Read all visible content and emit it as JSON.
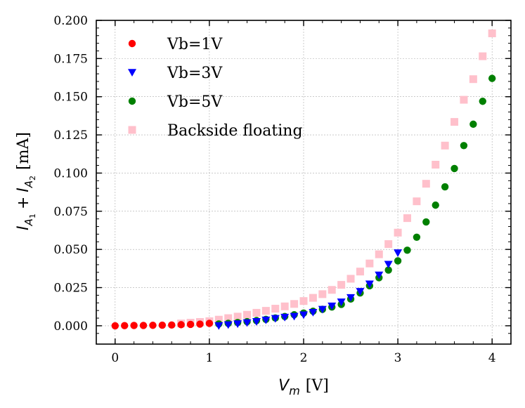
{
  "chart_data": {
    "type": "scatter",
    "title": "",
    "xlabel": {
      "var": "V",
      "sub": "m",
      "unit": "[V]"
    },
    "ylabel": {
      "var1": "I",
      "sub1": "A",
      "subsub1": "1",
      "plus": "+",
      "var2": "I",
      "sub2": "A",
      "subsub2": "2",
      "unit": "[mA]"
    },
    "xlim": [
      -0.2,
      4.2
    ],
    "ylim": [
      -0.012,
      0.2
    ],
    "xticks": [
      0,
      1,
      2,
      3,
      4
    ],
    "xtick_labels": [
      "0",
      "1",
      "2",
      "3",
      "4"
    ],
    "yticks": [
      0.0,
      0.025,
      0.05,
      0.075,
      0.1,
      0.125,
      0.15,
      0.175,
      0.2
    ],
    "ytick_labels": [
      "0.000",
      "0.025",
      "0.050",
      "0.075",
      "0.100",
      "0.125",
      "0.150",
      "0.175",
      "0.200"
    ],
    "grid": true,
    "legend_position": "top-left",
    "series": [
      {
        "name": "Vb=1V",
        "marker": "circle",
        "color": "#ff0000",
        "x": [
          0,
          0.1,
          0.2,
          0.3,
          0.4,
          0.5,
          0.6,
          0.7,
          0.8,
          0.9,
          1.0
        ],
        "y": [
          0.0,
          0.0001,
          0.0002,
          0.0002,
          0.0003,
          0.0004,
          0.0005,
          0.0007,
          0.0009,
          0.0011,
          0.0016
        ]
      },
      {
        "name": "Vb=3V",
        "marker": "triangle-down",
        "color": "#0000ff",
        "x": [
          1.1,
          1.2,
          1.3,
          1.4,
          1.5,
          1.6,
          1.7,
          1.8,
          1.9,
          2.0,
          2.1,
          2.2,
          2.3,
          2.4,
          2.5,
          2.6,
          2.7,
          2.8,
          2.9,
          3.0
        ],
        "y": [
          0.0001,
          0.0007,
          0.0013,
          0.002,
          0.0028,
          0.0038,
          0.0048,
          0.0056,
          0.0062,
          0.0072,
          0.0088,
          0.0108,
          0.013,
          0.0156,
          0.0185,
          0.0225,
          0.0274,
          0.0333,
          0.0403,
          0.0478
        ]
      },
      {
        "name": "Vb=5V",
        "marker": "circle",
        "color": "#008000",
        "x": [
          1.1,
          1.2,
          1.3,
          1.4,
          1.5,
          1.6,
          1.7,
          1.8,
          1.9,
          2.0,
          2.1,
          2.2,
          2.3,
          2.4,
          2.5,
          2.6,
          2.7,
          2.8,
          2.9,
          3.0,
          3.1,
          3.2,
          3.3,
          3.4,
          3.5,
          3.6,
          3.7,
          3.8,
          3.9,
          4.0
        ],
        "y": [
          0.0012,
          0.0016,
          0.0021,
          0.0027,
          0.0034,
          0.0042,
          0.0051,
          0.0061,
          0.0072,
          0.0083,
          0.0095,
          0.0108,
          0.0123,
          0.014,
          0.0175,
          0.0215,
          0.0262,
          0.0315,
          0.0365,
          0.0425,
          0.0495,
          0.058,
          0.068,
          0.079,
          0.091,
          0.103,
          0.118,
          0.132,
          0.147,
          0.162
        ]
      },
      {
        "name": "Backside floating",
        "marker": "square",
        "color": "#ffc0cb",
        "x": [
          0.7,
          0.8,
          0.9,
          1.0,
          1.1,
          1.2,
          1.3,
          1.4,
          1.5,
          1.6,
          1.7,
          1.8,
          1.9,
          2.0,
          2.1,
          2.2,
          2.3,
          2.4,
          2.5,
          2.6,
          2.7,
          2.8,
          2.9,
          3.0,
          3.1,
          3.2,
          3.3,
          3.4,
          3.5,
          3.6,
          3.7,
          3.8,
          3.9,
          4.0
        ],
        "y": [
          0.0015,
          0.002,
          0.0025,
          0.003,
          0.004,
          0.005,
          0.006,
          0.0072,
          0.0085,
          0.0098,
          0.0112,
          0.0127,
          0.0143,
          0.0162,
          0.0183,
          0.0207,
          0.0235,
          0.0268,
          0.0308,
          0.0355,
          0.0408,
          0.0468,
          0.0535,
          0.061,
          0.0705,
          0.0815,
          0.093,
          0.1055,
          0.118,
          0.1335,
          0.148,
          0.1615,
          0.1765,
          0.1915
        ]
      }
    ]
  }
}
